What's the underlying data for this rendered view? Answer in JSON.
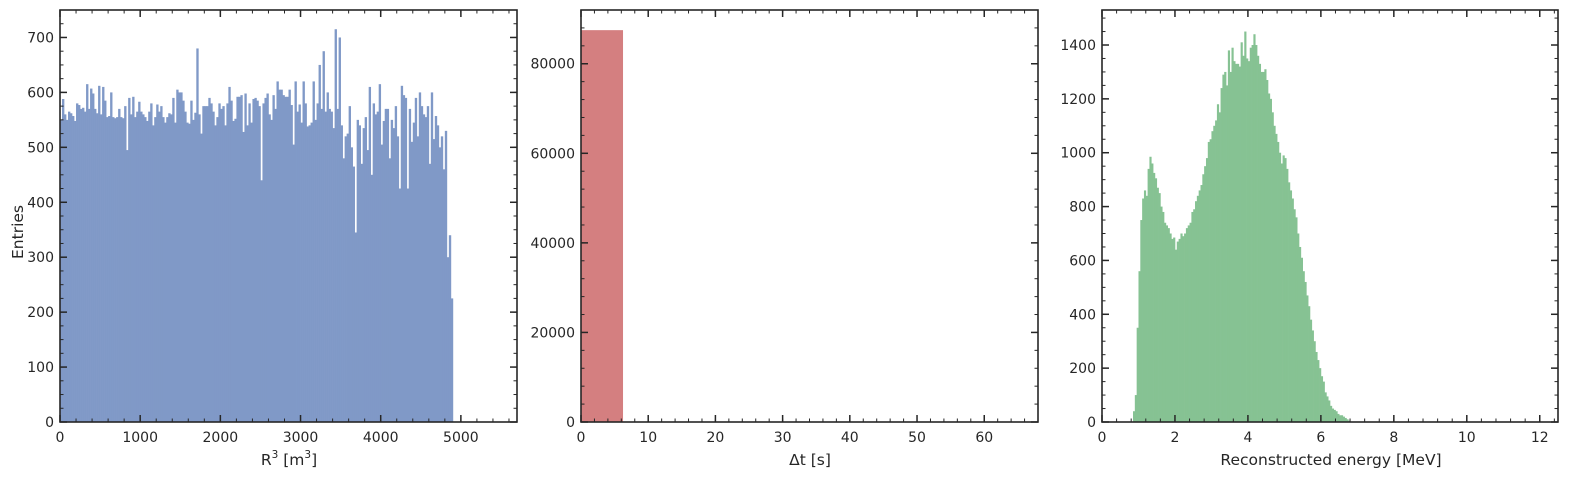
{
  "colors": {
    "panel1": "#8099c7",
    "panel2": "#d47f80",
    "panel3": "#86c293",
    "axis": "#262626"
  },
  "chart_data": [
    {
      "type": "bar",
      "xlabel_base": "R",
      "xlabel_sup1": "3",
      "xlabel_mid": " [m",
      "xlabel_sup2": "3",
      "xlabel_end": "]",
      "ylabel": "Entries",
      "xlim": [
        0,
        5700
      ],
      "ylim": [
        0,
        750
      ],
      "xticks": [
        0,
        1000,
        2000,
        3000,
        4000,
        5000
      ],
      "yticks": [
        0,
        100,
        200,
        300,
        400,
        500,
        600,
        700
      ],
      "xminor": 200,
      "yminor": 25,
      "bin_start": 0,
      "bin_width": 25,
      "values": [
        550,
        588,
        560,
        550,
        565,
        562,
        557,
        548,
        580,
        577,
        570,
        572,
        565,
        615,
        570,
        607,
        598,
        570,
        562,
        612,
        560,
        610,
        585,
        555,
        557,
        600,
        555,
        553,
        555,
        570,
        555,
        553,
        575,
        495,
        590,
        560,
        592,
        555,
        565,
        583,
        565,
        560,
        555,
        548,
        565,
        580,
        540,
        555,
        578,
        565,
        575,
        555,
        545,
        555,
        562,
        560,
        590,
        545,
        605,
        600,
        600,
        585,
        565,
        545,
        543,
        585,
        550,
        563,
        680,
        560,
        525,
        575,
        575,
        575,
        590,
        580,
        565,
        540,
        555,
        580,
        570,
        575,
        540,
        580,
        610,
        585,
        548,
        552,
        592,
        592,
        595,
        528,
        598,
        540,
        580,
        545,
        588,
        590,
        585,
        575,
        440,
        580,
        590,
        598,
        560,
        550,
        595,
        570,
        620,
        605,
        605,
        595,
        592,
        592,
        605,
        577,
        505,
        620,
        565,
        578,
        545,
        620,
        580,
        538,
        540,
        545,
        620,
        550,
        580,
        650,
        570,
        675,
        565,
        600,
        570,
        565,
        535,
        715,
        570,
        700,
        540,
        480,
        520,
        525,
        575,
        500,
        465,
        345,
        550,
        540,
        470,
        535,
        555,
        495,
        610,
        450,
        580,
        560,
        565,
        615,
        505,
        548,
        570,
        570,
        480,
        550,
        535,
        575,
        520,
        425,
        612,
        595,
        590,
        425,
        570,
        510,
        545,
        590,
        520,
        600,
        575,
        560,
        555,
        575,
        470,
        600,
        515,
        557,
        540,
        500,
        520,
        460,
        530,
        300,
        340,
        225
      ],
      "histtype": "step-filled"
    },
    {
      "type": "bar",
      "xlabel": "Δt [s]",
      "ylabel": "",
      "xlim": [
        0,
        68
      ],
      "ylim": [
        0,
        92000
      ],
      "xticks": [
        0,
        10,
        20,
        30,
        40,
        50,
        60
      ],
      "yticks": [
        0,
        20000,
        40000,
        60000,
        80000
      ],
      "xminor": 2,
      "yminor": 4000,
      "bin_start": 0,
      "bin_width": 6.2,
      "values": [
        87500
      ]
    },
    {
      "type": "bar",
      "xlabel": "Reconstructed energy [MeV]",
      "ylabel": "",
      "xlim": [
        0,
        12.5
      ],
      "ylim": [
        0,
        1530
      ],
      "xticks": [
        0,
        2,
        4,
        6,
        8,
        10,
        12
      ],
      "yticks": [
        0,
        200,
        400,
        600,
        800,
        1000,
        1200,
        1400
      ],
      "xminor": 0.4,
      "yminor": 50,
      "bin_start": 0.85,
      "bin_width": 0.05,
      "values": [
        40,
        100,
        350,
        560,
        750,
        830,
        860,
        840,
        940,
        985,
        960,
        925,
        905,
        870,
        850,
        800,
        780,
        740,
        730,
        720,
        700,
        680,
        685,
        640,
        670,
        680,
        700,
        690,
        700,
        720,
        730,
        740,
        780,
        790,
        820,
        840,
        860,
        880,
        920,
        950,
        980,
        1040,
        1050,
        1080,
        1100,
        1120,
        1180,
        1150,
        1240,
        1290,
        1300,
        1250,
        1380,
        1300,
        1390,
        1340,
        1330,
        1330,
        1320,
        1410,
        1360,
        1450,
        1350,
        1340,
        1390,
        1400,
        1440,
        1400,
        1360,
        1330,
        1300,
        1300,
        1310,
        1270,
        1220,
        1200,
        1150,
        1100,
        1070,
        1040,
        1000,
        960,
        990,
        980,
        940,
        890,
        860,
        830,
        790,
        760,
        700,
        650,
        610,
        560,
        520,
        470,
        430,
        380,
        340,
        300,
        260,
        230,
        200,
        170,
        150,
        110,
        95,
        80,
        60,
        50,
        45,
        40,
        30,
        25,
        25,
        20,
        15,
        10,
        5
      ]
    }
  ]
}
